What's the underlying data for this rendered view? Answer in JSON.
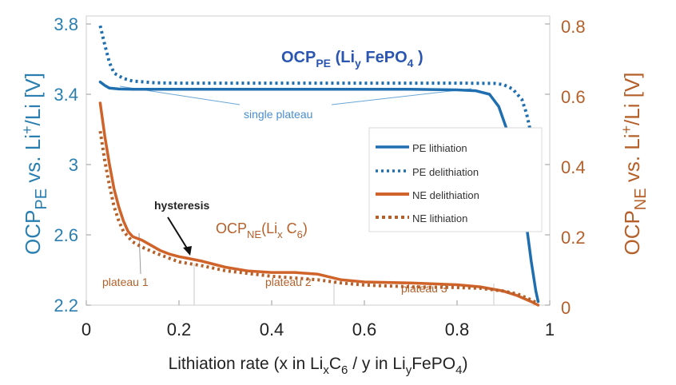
{
  "chart_data": {
    "type": "line",
    "x": {
      "range": [
        0,
        1
      ],
      "ticks": [
        0,
        0.2,
        0.4,
        0.6,
        0.8,
        1
      ],
      "tick_labels": [
        "0",
        "0.2",
        "0.4",
        "0.6",
        "0.8",
        "1"
      ],
      "label": {
        "text": "Lithiation rate (x in Li",
        "sub1": "x",
        "mid": "C",
        "sub2": "6",
        "mid2": "  / y in  Li",
        "sub3": "y",
        "tail": "FePO",
        "sub4": "4",
        "close": ")"
      }
    },
    "y_left": {
      "range": [
        2.2,
        3.8
      ],
      "ticks": [
        2.2,
        2.6,
        3,
        3.4,
        3.8
      ],
      "tick_labels": [
        "2.2",
        "2.6",
        "3",
        "3.4",
        "3.8"
      ],
      "color": "#2a7fb0",
      "label": {
        "a": "OCP",
        "sub": "PE",
        "b": " vs. Li",
        "sup": "+",
        "c": "/Li [V]"
      }
    },
    "y_right": {
      "range": [
        0,
        0.8
      ],
      "ticks": [
        0,
        0.2,
        0.4,
        0.6,
        0.8
      ],
      "tick_labels": [
        "0",
        "0.2",
        "0.4",
        "0.6",
        "0.8"
      ],
      "color": "#b5602a",
      "label": {
        "a": "OCP",
        "sub": "NE",
        "b": " vs. Li",
        "sup": "+",
        "c": "/Li [V]"
      }
    },
    "grid": false,
    "legend_position": "right, inside",
    "series": [
      {
        "name": "PE lithiation",
        "axis": "left",
        "style": "solid",
        "color": "#1f6fb0",
        "points": [
          [
            0.03,
            3.47
          ],
          [
            0.04,
            3.45
          ],
          [
            0.05,
            3.435
          ],
          [
            0.07,
            3.43
          ],
          [
            0.1,
            3.428
          ],
          [
            0.2,
            3.428
          ],
          [
            0.3,
            3.428
          ],
          [
            0.4,
            3.428
          ],
          [
            0.5,
            3.428
          ],
          [
            0.6,
            3.428
          ],
          [
            0.7,
            3.428
          ],
          [
            0.8,
            3.425
          ],
          [
            0.84,
            3.42
          ],
          [
            0.87,
            3.4
          ],
          [
            0.89,
            3.33
          ],
          [
            0.91,
            3.18
          ],
          [
            0.93,
            2.95
          ],
          [
            0.95,
            2.65
          ],
          [
            0.96,
            2.45
          ],
          [
            0.97,
            2.28
          ],
          [
            0.975,
            2.22
          ]
        ]
      },
      {
        "name": "PE delithiation",
        "axis": "left",
        "style": "dotted",
        "color": "#1f6fb0",
        "points": [
          [
            0.03,
            3.79
          ],
          [
            0.04,
            3.68
          ],
          [
            0.05,
            3.58
          ],
          [
            0.06,
            3.52
          ],
          [
            0.08,
            3.49
          ],
          [
            0.1,
            3.475
          ],
          [
            0.15,
            3.465
          ],
          [
            0.2,
            3.463
          ],
          [
            0.4,
            3.463
          ],
          [
            0.6,
            3.463
          ],
          [
            0.8,
            3.463
          ],
          [
            0.88,
            3.462
          ],
          [
            0.9,
            3.455
          ],
          [
            0.92,
            3.43
          ],
          [
            0.94,
            3.37
          ],
          [
            0.95,
            3.29
          ],
          [
            0.96,
            3.17
          ],
          [
            0.97,
            3.02
          ],
          [
            0.975,
            2.95
          ]
        ]
      },
      {
        "name": "NE delithiation",
        "axis": "right",
        "style": "solid",
        "color": "#d0632a",
        "points": [
          [
            0.03,
            0.575
          ],
          [
            0.04,
            0.48
          ],
          [
            0.05,
            0.4
          ],
          [
            0.06,
            0.33
          ],
          [
            0.07,
            0.28
          ],
          [
            0.08,
            0.24
          ],
          [
            0.09,
            0.21
          ],
          [
            0.1,
            0.195
          ],
          [
            0.12,
            0.185
          ],
          [
            0.14,
            0.17
          ],
          [
            0.16,
            0.155
          ],
          [
            0.18,
            0.145
          ],
          [
            0.2,
            0.138
          ],
          [
            0.22,
            0.133
          ],
          [
            0.25,
            0.125
          ],
          [
            0.3,
            0.108
          ],
          [
            0.35,
            0.097
          ],
          [
            0.4,
            0.093
          ],
          [
            0.45,
            0.093
          ],
          [
            0.5,
            0.088
          ],
          [
            0.55,
            0.072
          ],
          [
            0.6,
            0.066
          ],
          [
            0.7,
            0.063
          ],
          [
            0.8,
            0.058
          ],
          [
            0.85,
            0.052
          ],
          [
            0.9,
            0.04
          ],
          [
            0.93,
            0.027
          ],
          [
            0.96,
            0.01
          ],
          [
            0.975,
            0
          ]
        ]
      },
      {
        "name": "NE lithiation",
        "axis": "right",
        "style": "dotted",
        "color": "#b5602a",
        "points": [
          [
            0.03,
            0.495
          ],
          [
            0.04,
            0.41
          ],
          [
            0.05,
            0.34
          ],
          [
            0.06,
            0.28
          ],
          [
            0.07,
            0.24
          ],
          [
            0.08,
            0.21
          ],
          [
            0.1,
            0.18
          ],
          [
            0.12,
            0.165
          ],
          [
            0.15,
            0.148
          ],
          [
            0.2,
            0.123
          ],
          [
            0.25,
            0.112
          ],
          [
            0.3,
            0.098
          ],
          [
            0.35,
            0.09
          ],
          [
            0.4,
            0.082
          ],
          [
            0.45,
            0.077
          ],
          [
            0.5,
            0.072
          ],
          [
            0.55,
            0.063
          ],
          [
            0.6,
            0.057
          ],
          [
            0.7,
            0.052
          ],
          [
            0.8,
            0.05
          ],
          [
            0.85,
            0.048
          ],
          [
            0.9,
            0.04
          ],
          [
            0.93,
            0.032
          ],
          [
            0.96,
            0.015
          ],
          [
            0.975,
            0.004
          ]
        ]
      }
    ],
    "annotations": {
      "ocp_pe": {
        "a": "OCP",
        "sub": "PE",
        "b": " (Li",
        "sub2": "y",
        "c": " FePO",
        "sub3": "4",
        "d": " )"
      },
      "single_plateau": "single plateau",
      "hysteresis": "hysteresis",
      "ocp_ne": {
        "a": "OCP",
        "sub": "NE",
        "b": "(Li",
        "sub2": "x",
        "c": " C",
        "sub3": "6",
        "d": ")"
      },
      "plateau_1": "plateau 1",
      "plateau_2": "plateau 2",
      "plateau_3": "plateau 3"
    }
  }
}
